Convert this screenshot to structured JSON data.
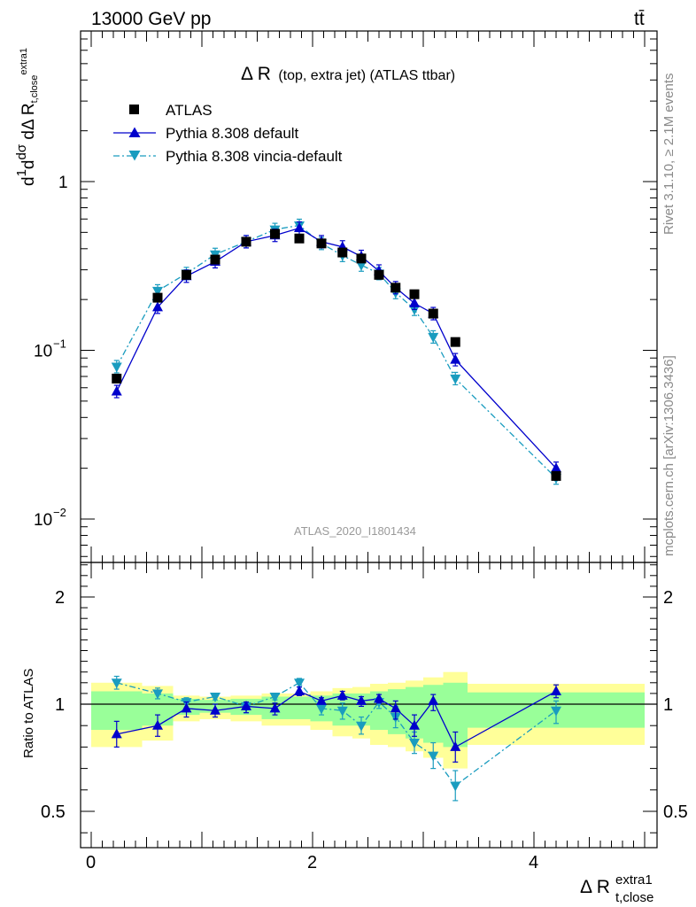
{
  "header": {
    "energy_label": "13000 GeV pp",
    "process_label": "tt̄"
  },
  "side_labels": {
    "rivet": "Rivet 3.1.10, ≥ 2.1M events",
    "mcplots": "mcplots.cern.ch [arXiv:1306.3436]"
  },
  "main_panel": {
    "title_main": "Δ R",
    "title_sub": "(top, extra jet) (ATLAS ttbar)",
    "analysis_id": "ATLAS_2020_I1801434",
    "ylabel": "dσ / dΔ R_t,close^extra1 (1/σ)",
    "legend": [
      "ATLAS",
      "Pythia 8.308 default",
      "Pythia 8.308 vincia-default"
    ]
  },
  "ratio_panel": {
    "ylabel": "Ratio to ATLAS"
  },
  "x_axis": {
    "label_main": "Δ R",
    "label_sup": "extra1",
    "label_sub": "t,close"
  },
  "colors": {
    "data": "#000000",
    "default": "#0000cc",
    "vincia": "#1a9cbf",
    "band_inner": "#99ff99",
    "band_outer": "#ffff99"
  },
  "chart_data": [
    {
      "type": "scatter",
      "panel": "main",
      "title": "Δ R (top, extra jet) (ATLAS ttbar)",
      "xlabel": "Δ R t,close extra1",
      "ylabel": "1/σ dσ/dΔ R t,close extra1",
      "log_y": true,
      "xlim": [
        -0.1,
        5.1
      ],
      "ylim": [
        0.006,
        7
      ],
      "y_ticks": [
        "10⁻²",
        "10⁻¹",
        "1"
      ],
      "x_ticks": [
        "0",
        "2",
        "4"
      ],
      "legend_position": "top-left",
      "series": [
        {
          "name": "ATLAS",
          "marker": "square",
          "x": [
            0.23,
            0.6,
            0.86,
            1.12,
            1.4,
            1.66,
            1.88,
            2.08,
            2.27,
            2.44,
            2.6,
            2.75,
            2.92,
            3.09,
            3.29,
            4.2
          ],
          "y": [
            0.068,
            0.205,
            0.28,
            0.345,
            0.44,
            0.49,
            0.46,
            0.43,
            0.38,
            0.35,
            0.28,
            0.235,
            0.215,
            0.165,
            0.112,
            0.018
          ]
        },
        {
          "name": "Pythia 8.308 default",
          "marker": "triangle-up",
          "x": [
            0.23,
            0.6,
            0.86,
            1.12,
            1.4,
            1.66,
            1.88,
            2.08,
            2.27,
            2.44,
            2.6,
            2.75,
            2.92,
            3.09,
            3.29,
            4.2
          ],
          "y": [
            0.057,
            0.18,
            0.275,
            0.335,
            0.44,
            0.48,
            0.53,
            0.44,
            0.41,
            0.36,
            0.295,
            0.235,
            0.19,
            0.165,
            0.088,
            0.02
          ]
        },
        {
          "name": "Pythia 8.308 vincia-default",
          "marker": "triangle-down",
          "x": [
            0.23,
            0.6,
            0.86,
            1.12,
            1.4,
            1.66,
            1.88,
            2.08,
            2.27,
            2.44,
            2.6,
            2.75,
            2.92,
            3.09,
            3.29,
            4.2
          ],
          "y": [
            0.08,
            0.225,
            0.285,
            0.37,
            0.44,
            0.52,
            0.55,
            0.43,
            0.365,
            0.32,
            0.285,
            0.22,
            0.175,
            0.12,
            0.068,
            0.0175
          ]
        }
      ]
    },
    {
      "type": "line",
      "panel": "ratio",
      "ylabel": "Ratio to ATLAS",
      "xlabel": "Δ R t,close extra1",
      "xlim": [
        -0.1,
        5.1
      ],
      "ylim": [
        0.3,
        2.5
      ],
      "y_ticks": [
        "0.5",
        "1",
        "2"
      ],
      "x_ticks": [
        "0",
        "2",
        "4"
      ],
      "bin_edges": [
        0.0,
        0.46,
        0.74,
        0.98,
        1.26,
        1.54,
        1.78,
        1.98,
        2.18,
        2.36,
        2.52,
        2.68,
        2.84,
        3.0,
        3.18,
        3.4,
        5.0
      ],
      "band_inner": [
        0.12,
        0.1,
        0.05,
        0.04,
        0.05,
        0.07,
        0.07,
        0.08,
        0.1,
        0.1,
        0.12,
        0.14,
        0.16,
        0.18,
        0.2,
        0.11
      ],
      "band_outer": [
        0.2,
        0.17,
        0.08,
        0.07,
        0.08,
        0.1,
        0.1,
        0.12,
        0.15,
        0.16,
        0.19,
        0.2,
        0.22,
        0.25,
        0.3,
        0.19
      ],
      "series": [
        {
          "name": "Pythia 8.308 default",
          "x": [
            0.23,
            0.6,
            0.86,
            1.12,
            1.4,
            1.66,
            1.88,
            2.08,
            2.27,
            2.44,
            2.6,
            2.75,
            2.92,
            3.09,
            3.29,
            4.2
          ],
          "y": [
            0.86,
            0.9,
            0.98,
            0.97,
            0.99,
            0.98,
            1.12,
            1.03,
            1.08,
            1.03,
            1.05,
            0.98,
            0.9,
            1.03,
            0.8,
            1.12
          ],
          "err": [
            0.06,
            0.05,
            0.04,
            0.03,
            0.03,
            0.03,
            0.04,
            0.03,
            0.04,
            0.04,
            0.04,
            0.05,
            0.05,
            0.06,
            0.07,
            0.06
          ]
        },
        {
          "name": "Pythia 8.308 vincia-default",
          "x": [
            0.23,
            0.6,
            0.86,
            1.12,
            1.4,
            1.66,
            1.88,
            2.08,
            2.27,
            2.44,
            2.6,
            2.75,
            2.92,
            3.09,
            3.29,
            4.2
          ],
          "y": [
            1.2,
            1.1,
            1.02,
            1.07,
            0.99,
            1.07,
            1.2,
            0.98,
            0.97,
            0.9,
            1.02,
            0.94,
            0.82,
            0.76,
            0.62,
            0.97
          ],
          "err": [
            0.06,
            0.05,
            0.04,
            0.03,
            0.03,
            0.03,
            0.04,
            0.03,
            0.04,
            0.04,
            0.04,
            0.05,
            0.05,
            0.06,
            0.07,
            0.06
          ]
        }
      ]
    }
  ]
}
